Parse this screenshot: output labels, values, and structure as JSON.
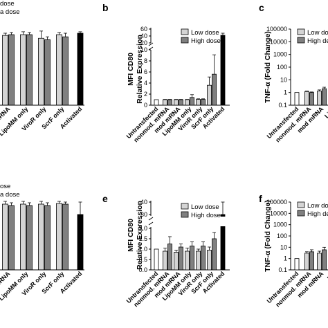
{
  "panels": {
    "a": {
      "legend": [
        "dose",
        "a dose"
      ],
      "categories": [
        "mRNA",
        "LipoMM only",
        "ViroR only",
        "ScrF only",
        "Activated"
      ]
    },
    "b": {
      "label": "b",
      "ylabel_top": "MFI CD80",
      "ylabel_bottom": "Relative Expression",
      "legend": [
        "Low dose",
        "High dose"
      ],
      "categories": [
        "Untransfected",
        "nonmod. mRNA",
        "mod mRNA",
        "LipoMM only",
        "ViroR only",
        "ScrF only",
        "Activated"
      ]
    },
    "c": {
      "label": "c",
      "ylabel": "TNF-α (Fold Change)",
      "legend": [
        "Low dose",
        "High de"
      ],
      "categories": [
        "Untransfected",
        "nonmod. mRNA",
        "mod mRNA",
        "Lipo"
      ]
    },
    "d": {
      "legend": [
        "ose",
        "a dose"
      ],
      "categories": [
        "mRNA",
        "LipoMM only",
        "ViroR only",
        "ScrF only",
        "Activated"
      ]
    },
    "e": {
      "label": "e",
      "ylabel_top": "MFI CD80",
      "ylabel_bottom": "Relative Expression",
      "legend": [
        "Low dose",
        "High dose"
      ],
      "categories": [
        "Untransfected",
        "nonmod. mRNA",
        "mod mRNA",
        "LipoMM only",
        "ViroR only",
        "ScrF only",
        "Activated"
      ]
    },
    "f": {
      "label": "f",
      "ylabel": "TNF-α (Fold Change)",
      "legend": [
        "Low dos",
        "High de"
      ],
      "categories": [
        "Untransfected",
        "nonmod. mRNA",
        "mod mRNA",
        "Lip"
      ]
    }
  },
  "colors": {
    "low": "#d4d4d4",
    "high": "#808080",
    "single": "#ffffff",
    "activated": "#000000"
  },
  "chart_data": [
    {
      "panel": "a",
      "type": "bar",
      "categories": [
        "mRNA",
        "LipoMM only",
        "ViroR only",
        "ScrF only",
        "Activated"
      ],
      "series": [
        {
          "values": [
            97,
            98,
            93,
            98,
            null
          ],
          "errors": [
            3,
            4,
            10,
            3,
            null
          ]
        },
        {
          "values": [
            98,
            98,
            91,
            95,
            100
          ],
          "errors": [
            3,
            3,
            4,
            5,
            2
          ]
        }
      ]
    },
    {
      "panel": "b",
      "type": "bar",
      "categories": [
        "Untransfected",
        "nonmod. mRNA",
        "mod mRNA",
        "LipoMM only",
        "ViroR only",
        "ScrF only",
        "Activated"
      ],
      "ylim": [
        0,
        60
      ],
      "axis_break": [
        10,
        20
      ],
      "yticks": [
        0,
        2,
        4,
        6,
        8,
        10,
        20,
        40,
        60
      ],
      "series": [
        {
          "name": "Low dose",
          "values": [
            null,
            1.0,
            1.0,
            1.0,
            1.05,
            3.6,
            null
          ],
          "errors": [
            null,
            0.05,
            0.05,
            0.05,
            0.1,
            1.5,
            null
          ]
        },
        {
          "name": "High dose",
          "values": [
            null,
            1.0,
            1.0,
            1.4,
            1.05,
            5.6,
            null
          ],
          "errors": [
            null,
            0.05,
            0.05,
            0.5,
            0.1,
            3.5,
            null
          ]
        },
        {
          "values": [
            1.0,
            null,
            null,
            null,
            null,
            null,
            42
          ],
          "errors": [
            0,
            null,
            null,
            null,
            null,
            null,
            6
          ]
        }
      ]
    },
    {
      "panel": "c",
      "type": "bar",
      "yscale": "log",
      "categories": [
        "Untransfected",
        "nonmod. mRNA",
        "mod mRNA",
        "Lipo"
      ],
      "ylim": [
        0.1,
        100000
      ],
      "yticks": [
        0.1,
        1,
        10,
        100,
        1000,
        10000,
        100000
      ],
      "series": [
        {
          "name": "Low dose",
          "values": [
            null,
            1.2,
            1.3,
            0.8
          ],
          "errors": [
            null,
            0.1,
            0.3,
            0.1
          ]
        },
        {
          "name": "High dose",
          "values": [
            null,
            1.0,
            2.0,
            0.8
          ],
          "errors": [
            null,
            0.1,
            0.6,
            0.1
          ]
        },
        {
          "values": [
            1.0,
            null,
            null,
            null
          ],
          "errors": [
            0,
            null,
            null,
            null
          ]
        }
      ]
    },
    {
      "panel": "d",
      "type": "bar",
      "categories": [
        "mRNA",
        "LipoMM only",
        "ViroR only",
        "ScrF only",
        "Activated"
      ],
      "series": [
        {
          "values": [
            95,
            95,
            95,
            96,
            null
          ],
          "errors": [
            4,
            4,
            4,
            3,
            null
          ]
        },
        {
          "values": [
            93,
            93,
            93,
            95,
            80
          ],
          "errors": [
            4,
            4,
            4,
            3,
            18
          ]
        }
      ]
    },
    {
      "panel": "e",
      "type": "bar",
      "categories": [
        "Untransfected",
        "nonmod. mRNA",
        "mod mRNA",
        "LipoMM only",
        "ViroR only",
        "ScrF only",
        "Activated"
      ],
      "ylim": [
        0,
        40
      ],
      "yticks": [
        0,
        0.5,
        1.0,
        1.5,
        2.0,
        30,
        40
      ],
      "series": [
        {
          "name": "Low dose",
          "values": [
            null,
            0.9,
            0.85,
            0.9,
            0.9,
            0.95,
            null
          ],
          "errors": [
            null,
            0.15,
            0.1,
            0.15,
            0.1,
            0.15,
            null
          ]
        },
        {
          "name": "High dose",
          "values": [
            null,
            1.25,
            1.1,
            1.15,
            1.15,
            1.5,
            null
          ],
          "errors": [
            null,
            0.35,
            0.15,
            0.2,
            0.2,
            0.3,
            null
          ]
        },
        {
          "values": [
            1.0,
            null,
            null,
            null,
            null,
            null,
            30
          ],
          "errors": [
            0,
            null,
            null,
            null,
            null,
            null,
            10
          ]
        }
      ]
    },
    {
      "panel": "f",
      "type": "bar",
      "yscale": "log",
      "categories": [
        "Untransfected",
        "nonmod. mRNA",
        "mod mRNA",
        "Lip"
      ],
      "ylim": [
        0.1,
        100000
      ],
      "yticks": [
        0.1,
        1,
        10,
        100,
        1000,
        10000,
        100000
      ],
      "series": [
        {
          "name": "Low dose",
          "values": [
            null,
            3.0,
            3.0,
            1.5
          ],
          "errors": [
            null,
            1.0,
            1.5,
            0.3
          ]
        },
        {
          "name": "High dose",
          "values": [
            null,
            4.0,
            6.0,
            1.5
          ],
          "errors": [
            null,
            2.0,
            4.0,
            0.5
          ]
        },
        {
          "values": [
            1.0,
            null,
            null,
            null
          ],
          "errors": [
            0,
            null,
            null,
            null
          ]
        }
      ]
    }
  ]
}
